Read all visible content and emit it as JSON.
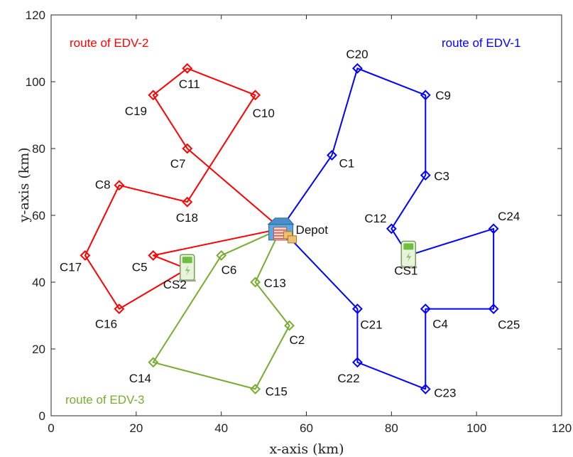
{
  "chart_data": {
    "type": "scatter",
    "title": "",
    "xlabel": "x-axis (km)",
    "ylabel": "y-axis (km)",
    "xlim": [
      0,
      120
    ],
    "ylim": [
      0,
      120
    ],
    "xticks": [
      0,
      20,
      40,
      60,
      80,
      100,
      120
    ],
    "yticks": [
      0,
      20,
      40,
      60,
      80,
      100,
      120
    ],
    "grid": false,
    "depot": {
      "label": "Depot",
      "x": 54,
      "y": 56
    },
    "charging_stations": [
      {
        "label": "CS1",
        "x": 84,
        "y": 48
      },
      {
        "label": "CS2",
        "x": 32,
        "y": 44
      }
    ],
    "customers": [
      {
        "label": "C1",
        "x": 66,
        "y": 78
      },
      {
        "label": "C2",
        "x": 56,
        "y": 27
      },
      {
        "label": "C3",
        "x": 88,
        "y": 72
      },
      {
        "label": "C4",
        "x": 88,
        "y": 32
      },
      {
        "label": "C5",
        "x": 24,
        "y": 48
      },
      {
        "label": "C6",
        "x": 40,
        "y": 48
      },
      {
        "label": "C7",
        "x": 32,
        "y": 80
      },
      {
        "label": "C8",
        "x": 16,
        "y": 69
      },
      {
        "label": "C9",
        "x": 88,
        "y": 96
      },
      {
        "label": "C10",
        "x": 48,
        "y": 96
      },
      {
        "label": "C11",
        "x": 32,
        "y": 104
      },
      {
        "label": "C12",
        "x": 80,
        "y": 56
      },
      {
        "label": "C13",
        "x": 48,
        "y": 40
      },
      {
        "label": "C14",
        "x": 24,
        "y": 16
      },
      {
        "label": "C15",
        "x": 48,
        "y": 8
      },
      {
        "label": "C16",
        "x": 16,
        "y": 32
      },
      {
        "label": "C17",
        "x": 8,
        "y": 48
      },
      {
        "label": "C18",
        "x": 32,
        "y": 64
      },
      {
        "label": "C19",
        "x": 24,
        "y": 96
      },
      {
        "label": "C20",
        "x": 72,
        "y": 104
      },
      {
        "label": "C21",
        "x": 72,
        "y": 32
      },
      {
        "label": "C22",
        "x": 72,
        "y": 16
      },
      {
        "label": "C23",
        "x": 88,
        "y": 8
      },
      {
        "label": "C24",
        "x": 104,
        "y": 56
      },
      {
        "label": "C25",
        "x": 104,
        "y": 32
      }
    ],
    "series": [
      {
        "name": "route of EDV-1",
        "color": "#0000ff",
        "route": [
          "Depot",
          "C1",
          "C20",
          "C9",
          "C3",
          "C12",
          "CS1",
          "C24",
          "C25",
          "C4",
          "C23",
          "C22",
          "C21",
          "Depot"
        ]
      },
      {
        "name": "route of EDV-2",
        "color": "#ff0000",
        "route": [
          "Depot",
          "C7",
          "C19",
          "C11",
          "C10",
          "C18",
          "C8",
          "C17",
          "C16",
          "CS2",
          "C5",
          "Depot"
        ]
      },
      {
        "name": "route of EDV-3",
        "color": "#77ac30",
        "route": [
          "Depot",
          "C6",
          "C14",
          "C15",
          "C2",
          "C13",
          "Depot"
        ]
      }
    ]
  }
}
